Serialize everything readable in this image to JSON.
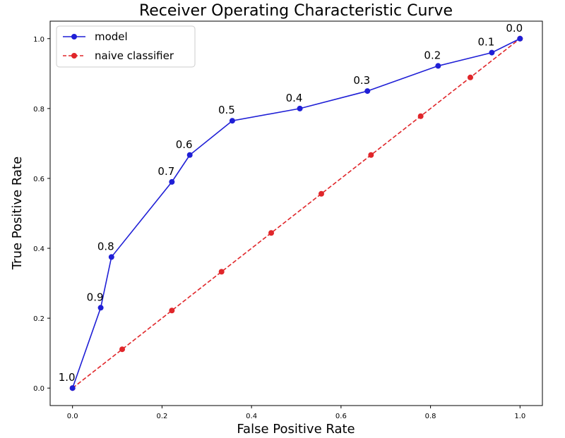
{
  "chart_data": {
    "type": "line",
    "title": "Receiver Operating Characteristic Curve",
    "xlabel": "False Positive Rate",
    "ylabel": "True Positive Rate",
    "xlim": [
      -0.05,
      1.05
    ],
    "ylim": [
      -0.05,
      1.05
    ],
    "xticks": [
      "0.0",
      "0.2",
      "0.4",
      "0.6",
      "0.8",
      "1.0"
    ],
    "yticks": [
      "0.0",
      "0.2",
      "0.4",
      "0.6",
      "0.8",
      "1.0"
    ],
    "legend_position": "top-left",
    "grid": false,
    "series": [
      {
        "name": "model",
        "color": "#1f1fd6",
        "style": "solid",
        "x": [
          0.0,
          0.063,
          0.087,
          0.222,
          0.262,
          0.357,
          0.508,
          0.659,
          0.817,
          0.937,
          1.0
        ],
        "y": [
          0.0,
          0.23,
          0.375,
          0.59,
          0.667,
          0.765,
          0.8,
          0.85,
          0.922,
          0.96,
          1.0
        ],
        "point_labels": [
          "1.0",
          "0.9",
          "0.8",
          "0.7",
          "0.6",
          "0.5",
          "0.4",
          "0.3",
          "0.2",
          "0.1",
          "0.0"
        ]
      },
      {
        "name": "naive classifier",
        "color": "#e0262a",
        "style": "dashed",
        "x": [
          0.0,
          0.111,
          0.222,
          0.333,
          0.444,
          0.556,
          0.667,
          0.778,
          0.889,
          1.0
        ],
        "y": [
          0.0,
          0.111,
          0.222,
          0.333,
          0.444,
          0.556,
          0.667,
          0.778,
          0.889,
          1.0
        ]
      }
    ]
  }
}
